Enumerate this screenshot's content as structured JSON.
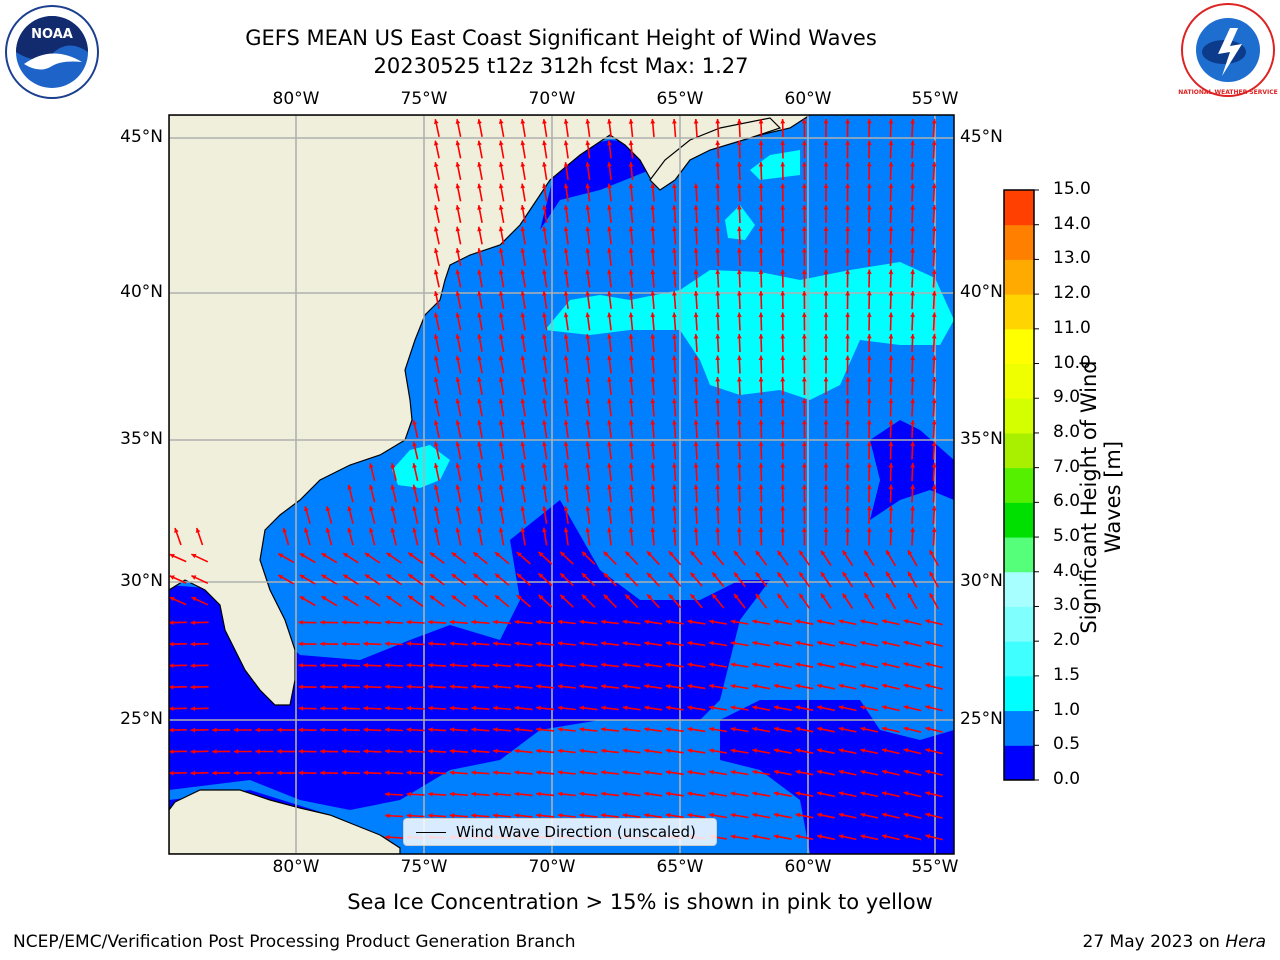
{
  "title": {
    "line1": "GEFS MEAN US East Coast Significant Height of Wind Waves",
    "line2": "20230525 t12z 312h fcst   Max: 1.27"
  },
  "map": {
    "lon_labels": [
      "80°W",
      "75°W",
      "70°W",
      "65°W",
      "60°W",
      "55°W"
    ],
    "lat_labels": [
      "45°N",
      "40°N",
      "35°N",
      "30°N",
      "25°N"
    ],
    "lon_range": [
      -85,
      -54
    ],
    "lat_range": [
      20.5,
      46
    ],
    "colors": {
      "land": "#efefdc",
      "grid": "#b0b0b0",
      "arrow": "#ff0000",
      "coast": "#000000"
    },
    "legend_label": "Wind Wave Direction (unscaled)"
  },
  "colorbar": {
    "title": "Significant Height of Wind Waves [m]",
    "levels": [
      "0.0",
      "0.5",
      "1.0",
      "1.5",
      "2.0",
      "3.0",
      "4.0",
      "5.0",
      "6.0",
      "7.0",
      "8.0",
      "9.0",
      "10.0",
      "11.0",
      "12.0",
      "13.0",
      "14.0",
      "15.0"
    ],
    "colors": [
      "#0000ff",
      "#0080ff",
      "#00ffff",
      "#40ffff",
      "#80ffff",
      "#a8ffff",
      "#55ff7a",
      "#00e000",
      "#55f000",
      "#a8f000",
      "#d4ff00",
      "#f0ff00",
      "#ffff00",
      "#ffd400",
      "#ffaa00",
      "#ff8000",
      "#ff4000",
      "#ff0000"
    ]
  },
  "logos": {
    "left": "NOAA",
    "right": "NATIONAL WEATHER SERVICE"
  },
  "ice_note": "Sea Ice Concentration > 15% is shown in pink to yellow",
  "footer": {
    "left": "NCEP/EMC/Verification Post Processing Product Generation Branch",
    "right_date": "27 May 2023 on ",
    "right_host": "Hera"
  }
}
